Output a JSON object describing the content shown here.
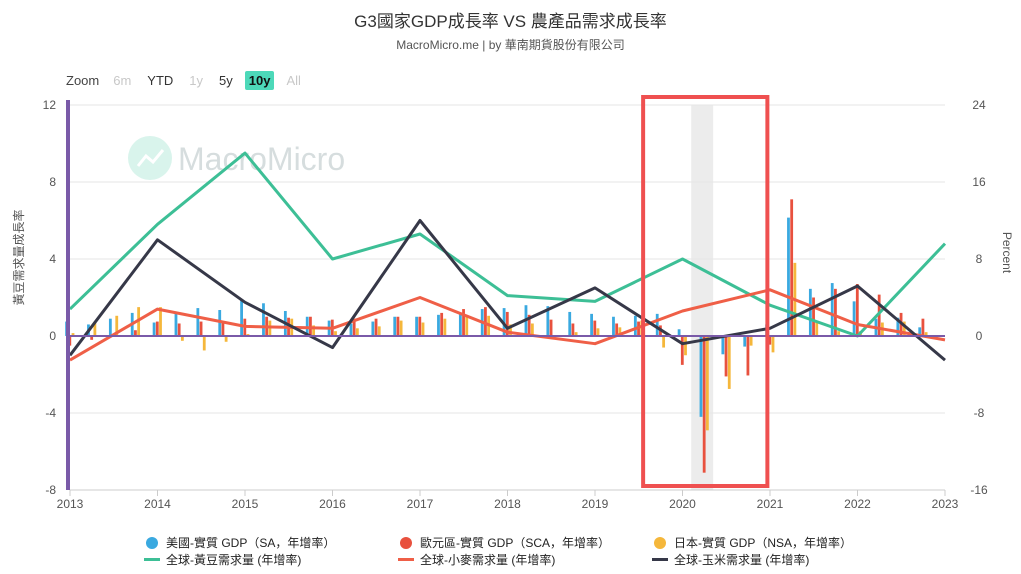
{
  "title": "G3國家GDP成長率 VS 農產品需求成長率",
  "subtitle": "MacroMicro.me | by 華南期貨股份有限公司",
  "zoom": {
    "label": "Zoom",
    "buttons": [
      {
        "label": "6m",
        "state": "disabled"
      },
      {
        "label": "YTD",
        "state": "normal"
      },
      {
        "label": "1y",
        "state": "disabled"
      },
      {
        "label": "5y",
        "state": "normal"
      },
      {
        "label": "10y",
        "state": "active"
      },
      {
        "label": "All",
        "state": "disabled"
      }
    ]
  },
  "watermark": "MacroMicro",
  "colors": {
    "us": "#3aa9e0",
    "eu": "#e8513e",
    "jp": "#f5b73b",
    "soy": "#3dbf96",
    "wheat": "#ef5f47",
    "corn": "#363848",
    "axis_accent": "#7a5aa8",
    "highlight": "#ef5050",
    "shade": "#ececec"
  },
  "chart_data": {
    "type": "bar+line",
    "left_axis": {
      "label": "黃豆需求量成長率",
      "range": [
        -8,
        12
      ],
      "ticks": [
        "12",
        "8",
        "4",
        "0",
        "-4",
        "-8"
      ]
    },
    "right_axis": {
      "label": "Percent",
      "range": [
        -16,
        24
      ],
      "ticks": [
        "24",
        "16",
        "8",
        "0",
        "-8",
        "-16"
      ]
    },
    "x_axis": {
      "range": [
        2013,
        2023
      ],
      "ticks": [
        "2013",
        "2014",
        "2015",
        "2016",
        "2017",
        "2018",
        "2019",
        "2020",
        "2021",
        "2022",
        "2023"
      ]
    },
    "bar_series": [
      {
        "name": "美國-實質 GDP（SA，年增率）",
        "key": "us",
        "axis": "right",
        "x": [
          2013.0,
          2013.25,
          2013.5,
          2013.75,
          2014.0,
          2014.25,
          2014.5,
          2014.75,
          2015.0,
          2015.25,
          2015.5,
          2015.75,
          2016.0,
          2016.25,
          2016.5,
          2016.75,
          2017.0,
          2017.25,
          2017.5,
          2017.75,
          2018.0,
          2018.25,
          2018.5,
          2018.75,
          2019.0,
          2019.25,
          2019.5,
          2019.75,
          2020.0,
          2020.25,
          2020.5,
          2020.75,
          2021.0,
          2021.25,
          2021.5,
          2021.75,
          2022.0,
          2022.25,
          2022.5,
          2022.75
        ],
        "values": [
          1.5,
          1.2,
          1.8,
          2.4,
          1.4,
          2.4,
          2.9,
          2.7,
          3.8,
          3.4,
          2.6,
          2.0,
          1.6,
          1.3,
          1.5,
          2.0,
          2.0,
          2.2,
          2.4,
          2.8,
          2.9,
          3.2,
          3.1,
          2.5,
          2.3,
          2.0,
          2.1,
          2.3,
          0.7,
          -8.4,
          -1.9,
          -1.1,
          1.2,
          12.3,
          4.9,
          5.5,
          3.6,
          1.8,
          1.9,
          0.9
        ]
      },
      {
        "name": "歐元區-實質 GDP（SCA，年增率）",
        "key": "eu",
        "axis": "right",
        "x": [
          2013.0,
          2013.25,
          2013.5,
          2013.75,
          2014.0,
          2014.25,
          2014.5,
          2014.75,
          2015.0,
          2015.25,
          2015.5,
          2015.75,
          2016.0,
          2016.25,
          2016.5,
          2016.75,
          2017.0,
          2017.25,
          2017.5,
          2017.75,
          2018.0,
          2018.25,
          2018.5,
          2018.75,
          2019.0,
          2019.25,
          2019.5,
          2019.75,
          2020.0,
          2020.25,
          2020.5,
          2020.75,
          2021.0,
          2021.25,
          2021.5,
          2021.75,
          2022.0,
          2022.25,
          2022.5,
          2022.75
        ],
        "values": [
          -1.0,
          -0.4,
          0.1,
          0.6,
          1.5,
          1.3,
          1.5,
          1.4,
          1.8,
          2.0,
          1.9,
          2.0,
          1.7,
          1.8,
          1.8,
          2.0,
          2.0,
          2.4,
          2.8,
          3.0,
          2.5,
          2.2,
          1.7,
          1.3,
          1.6,
          1.3,
          1.5,
          1.1,
          -3.0,
          -14.2,
          -4.2,
          -4.1,
          -0.9,
          14.2,
          4.0,
          4.9,
          5.4,
          4.3,
          2.4,
          1.8
        ]
      },
      {
        "name": "日本-實質 GDP（NSA，年增率）",
        "key": "jp",
        "axis": "right",
        "x": [
          2013.0,
          2013.25,
          2013.5,
          2013.75,
          2014.0,
          2014.25,
          2014.5,
          2014.75,
          2015.0,
          2015.25,
          2015.5,
          2015.75,
          2016.0,
          2016.25,
          2016.5,
          2016.75,
          2017.0,
          2017.25,
          2017.5,
          2017.75,
          2018.0,
          2018.25,
          2018.5,
          2018.75,
          2019.0,
          2019.25,
          2019.5,
          2019.75,
          2020.0,
          2020.25,
          2020.5,
          2020.75,
          2021.0,
          2021.25,
          2021.5,
          2021.75,
          2022.0,
          2022.25,
          2022.5,
          2022.75
        ],
        "values": [
          0.3,
          1.5,
          2.1,
          3.0,
          3.0,
          -0.5,
          -1.5,
          -0.6,
          0.2,
          1.6,
          1.8,
          1.1,
          0.5,
          0.8,
          1.0,
          1.6,
          1.4,
          1.8,
          2.1,
          2.1,
          1.2,
          1.3,
          0.1,
          0.4,
          0.8,
          0.9,
          1.6,
          -1.2,
          -2.0,
          -9.8,
          -5.5,
          -1.0,
          -1.7,
          7.6,
          1.5,
          0.5,
          0.5,
          1.4,
          1.5,
          0.4
        ]
      }
    ],
    "line_series": [
      {
        "name": "全球-黃豆需求量 (年增率)",
        "key": "soy",
        "axis": "left",
        "x": [
          2013,
          2014,
          2015,
          2016,
          2017,
          2018,
          2019,
          2020,
          2021,
          2022,
          2023
        ],
        "values": [
          1.4,
          5.8,
          9.5,
          4.0,
          5.3,
          2.1,
          1.8,
          4.0,
          1.6,
          0.0,
          4.8
        ]
      },
      {
        "name": "全球-小麥需求量 (年增率)",
        "key": "wheat",
        "axis": "right",
        "x": [
          2013,
          2014,
          2015,
          2016,
          2017,
          2018,
          2019,
          2020,
          2021,
          2022,
          2023
        ],
        "values": [
          -2.5,
          2.8,
          1.0,
          0.8,
          4.0,
          0.4,
          -0.8,
          2.6,
          4.8,
          1.2,
          -0.4
        ]
      },
      {
        "name": "全球-玉米需求量 (年增率)",
        "key": "corn",
        "axis": "right",
        "x": [
          2013,
          2014,
          2015,
          2016,
          2017,
          2018,
          2019,
          2020,
          2021,
          2022,
          2023
        ],
        "values": [
          -2.0,
          10.0,
          3.5,
          -1.2,
          12.0,
          0.8,
          5.0,
          -0.8,
          0.8,
          5.2,
          -2.5
        ]
      }
    ],
    "recession_shade": {
      "from": 2020.1,
      "to": 2020.35
    },
    "highlight_box": {
      "from": 2019.55,
      "to": 2020.97
    },
    "grid": true,
    "legend_position": "bottom"
  }
}
